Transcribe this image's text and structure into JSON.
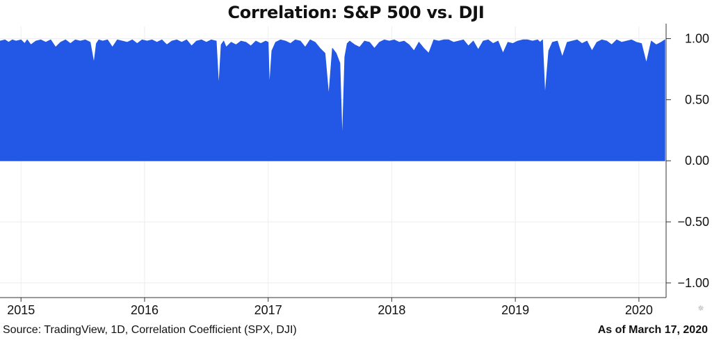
{
  "header": {
    "title": "Correlation: S&P 500 vs. DJI"
  },
  "footer": {
    "source": "Source: TradingView, 1D, Correlation Coefficient (SPX, DJI)",
    "as_of": "As of March 17, 2020"
  },
  "icons": {
    "settings": "gear-icon"
  },
  "colors": {
    "area": "#2358E6",
    "grid": "#ececec",
    "axis": "#333333"
  },
  "chart_data": {
    "type": "area",
    "title": "Correlation: S&P 500 vs. DJI",
    "xlabel": "",
    "ylabel": "",
    "ylim": [
      -1.12,
      1.1
    ],
    "xlim": [
      2014.83,
      2020.22
    ],
    "grid": true,
    "yticks": [
      {
        "value": 1.0,
        "label": "1.00"
      },
      {
        "value": 0.5,
        "label": "0.50"
      },
      {
        "value": 0.0,
        "label": "0.00"
      },
      {
        "value": -0.5,
        "label": "−0.50"
      },
      {
        "value": -1.0,
        "label": "−1.00"
      }
    ],
    "xticks": [
      {
        "value": 2015,
        "label": "2015"
      },
      {
        "value": 2016,
        "label": "2016"
      },
      {
        "value": 2017,
        "label": "2017"
      },
      {
        "value": 2018,
        "label": "2018"
      },
      {
        "value": 2019,
        "label": "2019"
      },
      {
        "value": 2020,
        "label": "2020"
      }
    ],
    "series": [
      {
        "name": "Correlation Coefficient (SPX, DJI)",
        "x": [
          2014.83,
          2014.87,
          2014.9,
          2014.93,
          2014.96,
          2015.0,
          2015.03,
          2015.05,
          2015.08,
          2015.12,
          2015.16,
          2015.2,
          2015.24,
          2015.28,
          2015.32,
          2015.36,
          2015.4,
          2015.44,
          2015.48,
          2015.52,
          2015.56,
          2015.59,
          2015.61,
          2015.63,
          2015.66,
          2015.7,
          2015.74,
          2015.78,
          2015.82,
          2015.86,
          2015.9,
          2015.94,
          2015.98,
          2016.02,
          2016.06,
          2016.1,
          2016.14,
          2016.18,
          2016.22,
          2016.26,
          2016.3,
          2016.34,
          2016.38,
          2016.42,
          2016.46,
          2016.5,
          2016.54,
          2016.58,
          2016.6,
          2016.62,
          2016.64,
          2016.66,
          2016.7,
          2016.74,
          2016.78,
          2016.82,
          2016.86,
          2016.9,
          2016.94,
          2016.98,
          2017.0,
          2017.01,
          2017.03,
          2017.06,
          2017.1,
          2017.14,
          2017.18,
          2017.22,
          2017.26,
          2017.3,
          2017.34,
          2017.38,
          2017.42,
          2017.46,
          2017.49,
          2017.52,
          2017.55,
          2017.58,
          2017.6,
          2017.62,
          2017.64,
          2017.66,
          2017.7,
          2017.74,
          2017.78,
          2017.82,
          2017.86,
          2017.9,
          2017.94,
          2017.98,
          2018.02,
          2018.06,
          2018.1,
          2018.14,
          2018.18,
          2018.22,
          2018.26,
          2018.3,
          2018.34,
          2018.38,
          2018.42,
          2018.46,
          2018.5,
          2018.54,
          2018.58,
          2018.62,
          2018.66,
          2018.7,
          2018.74,
          2018.78,
          2018.82,
          2018.86,
          2018.9,
          2018.94,
          2018.98,
          2019.02,
          2019.06,
          2019.1,
          2019.14,
          2019.18,
          2019.2,
          2019.22,
          2019.24,
          2019.27,
          2019.3,
          2019.34,
          2019.38,
          2019.42,
          2019.46,
          2019.5,
          2019.54,
          2019.58,
          2019.62,
          2019.66,
          2019.7,
          2019.74,
          2019.78,
          2019.82,
          2019.86,
          2019.9,
          2019.94,
          2019.98,
          2020.02,
          2020.06,
          2020.1,
          2020.14,
          2020.18,
          2020.21
        ],
        "values": [
          0.98,
          0.99,
          0.97,
          0.99,
          0.98,
          0.99,
          0.96,
          0.99,
          0.95,
          0.98,
          0.99,
          0.97,
          0.99,
          0.93,
          0.97,
          0.99,
          0.96,
          0.99,
          0.98,
          0.99,
          0.97,
          0.8,
          0.96,
          0.99,
          0.98,
          0.99,
          0.93,
          0.99,
          0.98,
          0.97,
          0.99,
          0.96,
          0.99,
          0.98,
          0.99,
          0.97,
          0.99,
          0.95,
          0.98,
          0.99,
          0.97,
          0.99,
          0.94,
          0.98,
          0.99,
          0.97,
          0.99,
          0.98,
          0.6,
          0.95,
          0.98,
          0.93,
          0.97,
          0.95,
          0.98,
          0.97,
          0.94,
          0.98,
          0.96,
          0.98,
          0.97,
          0.6,
          0.9,
          0.97,
          0.99,
          0.98,
          0.96,
          0.99,
          0.98,
          0.93,
          0.99,
          0.97,
          0.92,
          0.88,
          0.53,
          0.92,
          0.88,
          0.8,
          0.15,
          0.85,
          0.96,
          0.98,
          0.95,
          0.93,
          0.98,
          0.97,
          0.92,
          0.97,
          0.99,
          0.98,
          0.99,
          0.97,
          0.98,
          0.95,
          0.9,
          0.97,
          0.92,
          0.88,
          0.99,
          0.98,
          0.99,
          0.99,
          0.97,
          0.98,
          0.99,
          0.94,
          0.98,
          0.91,
          0.98,
          0.99,
          0.96,
          0.98,
          0.88,
          0.97,
          0.96,
          0.98,
          0.99,
          0.99,
          0.98,
          0.99,
          0.97,
          0.99,
          0.53,
          0.9,
          0.97,
          0.98,
          0.85,
          0.97,
          0.98,
          0.99,
          0.96,
          0.98,
          0.9,
          0.97,
          0.99,
          0.98,
          0.95,
          0.99,
          0.97,
          0.98,
          0.99,
          0.97,
          0.96,
          0.8,
          0.98,
          0.95,
          0.97,
          0.99
        ]
      }
    ]
  }
}
